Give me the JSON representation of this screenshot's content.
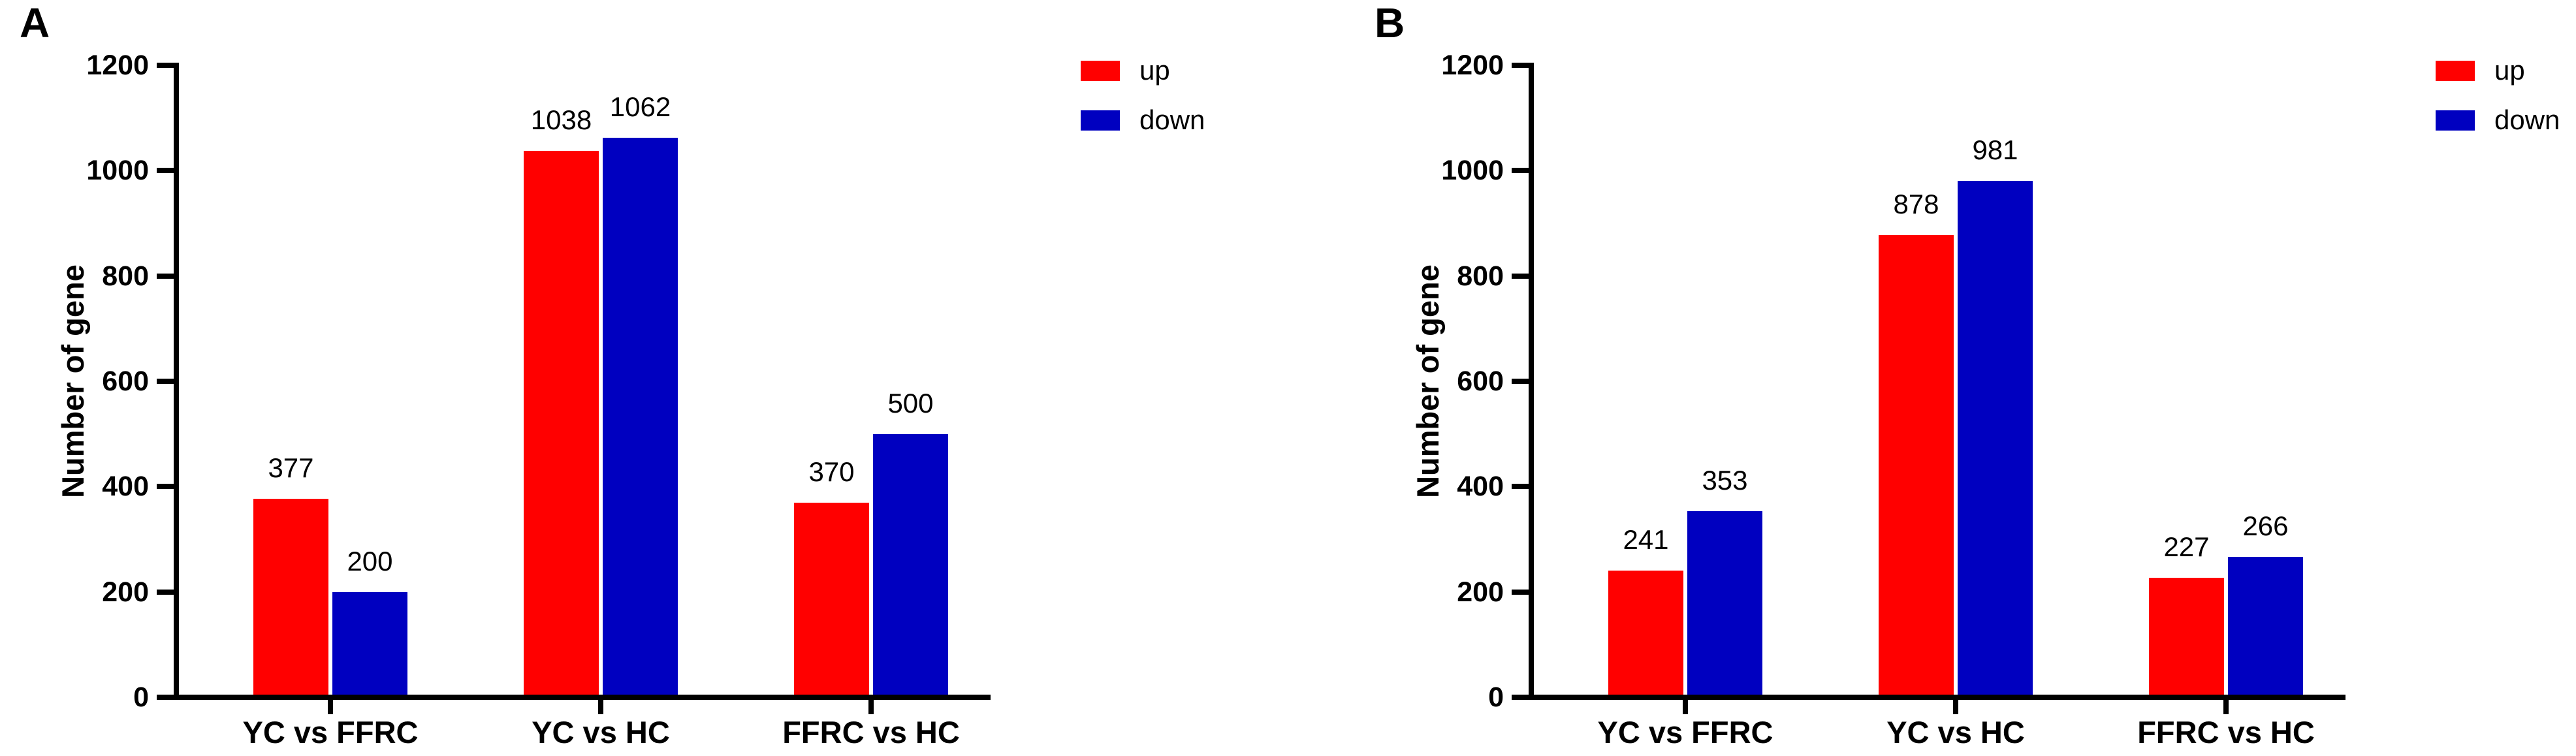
{
  "figure": {
    "background": "#ffffff",
    "axis_color": "#000000"
  },
  "legend": {
    "position": "top-right",
    "items": [
      {
        "label": "up",
        "color": "#ff0000"
      },
      {
        "label": "down",
        "color": "#0000c0"
      }
    ]
  },
  "chart_data": [
    {
      "type": "bar",
      "panel_label": "A",
      "title": "",
      "xlabel": "",
      "ylabel": "Number of gene",
      "ylim": [
        0,
        1200
      ],
      "yticks": [
        0,
        200,
        400,
        600,
        800,
        1000,
        1200
      ],
      "grid": false,
      "legend_position": "top-right",
      "categories": [
        "YC vs FFRC",
        "YC vs HC",
        "FFRC vs HC"
      ],
      "series": [
        {
          "name": "up",
          "color": "#ff0000",
          "values": [
            377,
            1038,
            370
          ]
        },
        {
          "name": "down",
          "color": "#0000c0",
          "values": [
            200,
            1062,
            500
          ]
        }
      ]
    },
    {
      "type": "bar",
      "panel_label": "B",
      "title": "",
      "xlabel": "",
      "ylabel": "Number of gene",
      "ylim": [
        0,
        1200
      ],
      "yticks": [
        0,
        200,
        400,
        600,
        800,
        1000,
        1200
      ],
      "grid": false,
      "legend_position": "top-right",
      "categories": [
        "YC vs FFRC",
        "YC vs HC",
        "FFRC vs HC"
      ],
      "series": [
        {
          "name": "up",
          "color": "#ff0000",
          "values": [
            241,
            878,
            227
          ]
        },
        {
          "name": "down",
          "color": "#0000c0",
          "values": [
            353,
            981,
            266
          ]
        }
      ]
    }
  ]
}
